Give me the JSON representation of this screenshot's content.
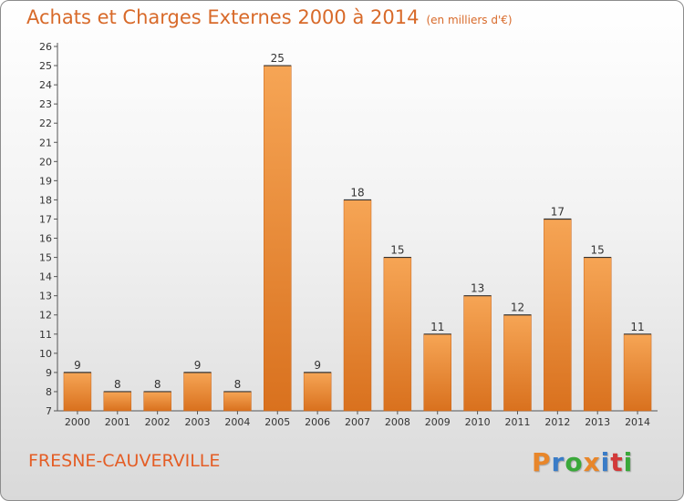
{
  "title": "Achats et Charges Externes 2000 à 2014",
  "subtitle": "(en milliers d'€)",
  "commune": "FRESNE-CAUVERVILLE",
  "logo": {
    "text": "Proxiti",
    "colors": [
      "#e8862a",
      "#3a7cc7",
      "#3aa83a",
      "#e8862a",
      "#3a7cc7",
      "#d23a3a",
      "#3aa83a"
    ]
  },
  "chart_data": {
    "type": "bar",
    "categories": [
      "2000",
      "2001",
      "2002",
      "2003",
      "2004",
      "2005",
      "2006",
      "2007",
      "2008",
      "2009",
      "2010",
      "2011",
      "2012",
      "2013",
      "2014"
    ],
    "values": [
      9,
      8,
      8,
      9,
      8,
      25,
      9,
      18,
      15,
      11,
      13,
      12,
      17,
      15,
      11
    ],
    "ylim": [
      7,
      26
    ],
    "yticks": [
      7,
      8,
      9,
      10,
      11,
      12,
      13,
      14,
      15,
      16,
      17,
      18,
      19,
      20,
      21,
      22,
      23,
      24,
      25,
      26
    ],
    "grid": false,
    "bar_color": "#f0943a"
  }
}
